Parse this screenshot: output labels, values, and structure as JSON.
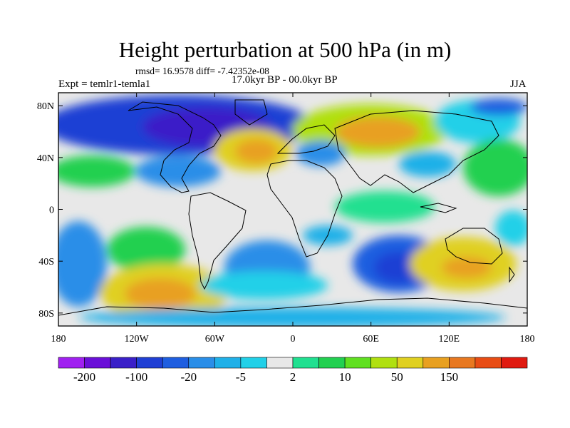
{
  "title": "Height perturbation at 500 hPa (in m)",
  "stats": "rmsd= 16.9578 diff= -7.42352e-08",
  "experiment": "Expt = temlr1-temla1",
  "period": "17.0kyr BP - 00.0kyr BP",
  "season": "JJA",
  "map": {
    "projection": "cylindrical-equidistant",
    "lon_range": [
      -180,
      180
    ],
    "lat_range": [
      -90,
      90
    ],
    "lon_ticks": [
      {
        "value": -180,
        "label": "180"
      },
      {
        "value": -120,
        "label": "120W"
      },
      {
        "value": -60,
        "label": "60W"
      },
      {
        "value": 0,
        "label": "0"
      },
      {
        "value": 60,
        "label": "60E"
      },
      {
        "value": 120,
        "label": "120E"
      },
      {
        "value": 180,
        "label": "180"
      }
    ],
    "lat_ticks": [
      {
        "value": 80,
        "label": "80N"
      },
      {
        "value": 40,
        "label": "40N"
      },
      {
        "value": 0,
        "label": "0"
      },
      {
        "value": -40,
        "label": "40S"
      },
      {
        "value": -80,
        "label": "80S"
      }
    ]
  },
  "colorbar": {
    "colors": [
      "#a020f0",
      "#6a0fd8",
      "#3a1fc8",
      "#1f3fd4",
      "#1e5ee0",
      "#2a8ee8",
      "#1fb0e8",
      "#21d0e8",
      "#e8e8e8",
      "#20e090",
      "#22d050",
      "#60e020",
      "#b0e010",
      "#e0d020",
      "#e8a020",
      "#e87820",
      "#e84c14",
      "#e01a10"
    ],
    "labels": [
      {
        "after_index": 0,
        "text": "-200"
      },
      {
        "after_index": 2,
        "text": "-100"
      },
      {
        "after_index": 4,
        "text": "-20"
      },
      {
        "after_index": 6,
        "text": "-5"
      },
      {
        "after_index": 8,
        "text": "2"
      },
      {
        "after_index": 10,
        "text": "10"
      },
      {
        "after_index": 12,
        "text": "50"
      },
      {
        "after_index": 14,
        "text": "150"
      }
    ]
  },
  "field_anomalies": [
    {
      "name": "north-atlantic-low",
      "lon": -95,
      "lat": 66,
      "value": -100
    },
    {
      "name": "siberia-high",
      "lon": 65,
      "lat": 62,
      "value": 50
    },
    {
      "name": "atlantic-high",
      "lon": -35,
      "lat": 40,
      "value": 50
    },
    {
      "name": "south-pacific-high",
      "lon": -105,
      "lat": -60,
      "value": 150
    },
    {
      "name": "indian-ocean-low",
      "lon": 70,
      "lat": -42,
      "value": -20
    },
    {
      "name": "australia-high",
      "lon": 135,
      "lat": -42,
      "value": 50
    },
    {
      "name": "south-atlantic-low",
      "lon": -20,
      "lat": -40,
      "value": -20
    }
  ]
}
